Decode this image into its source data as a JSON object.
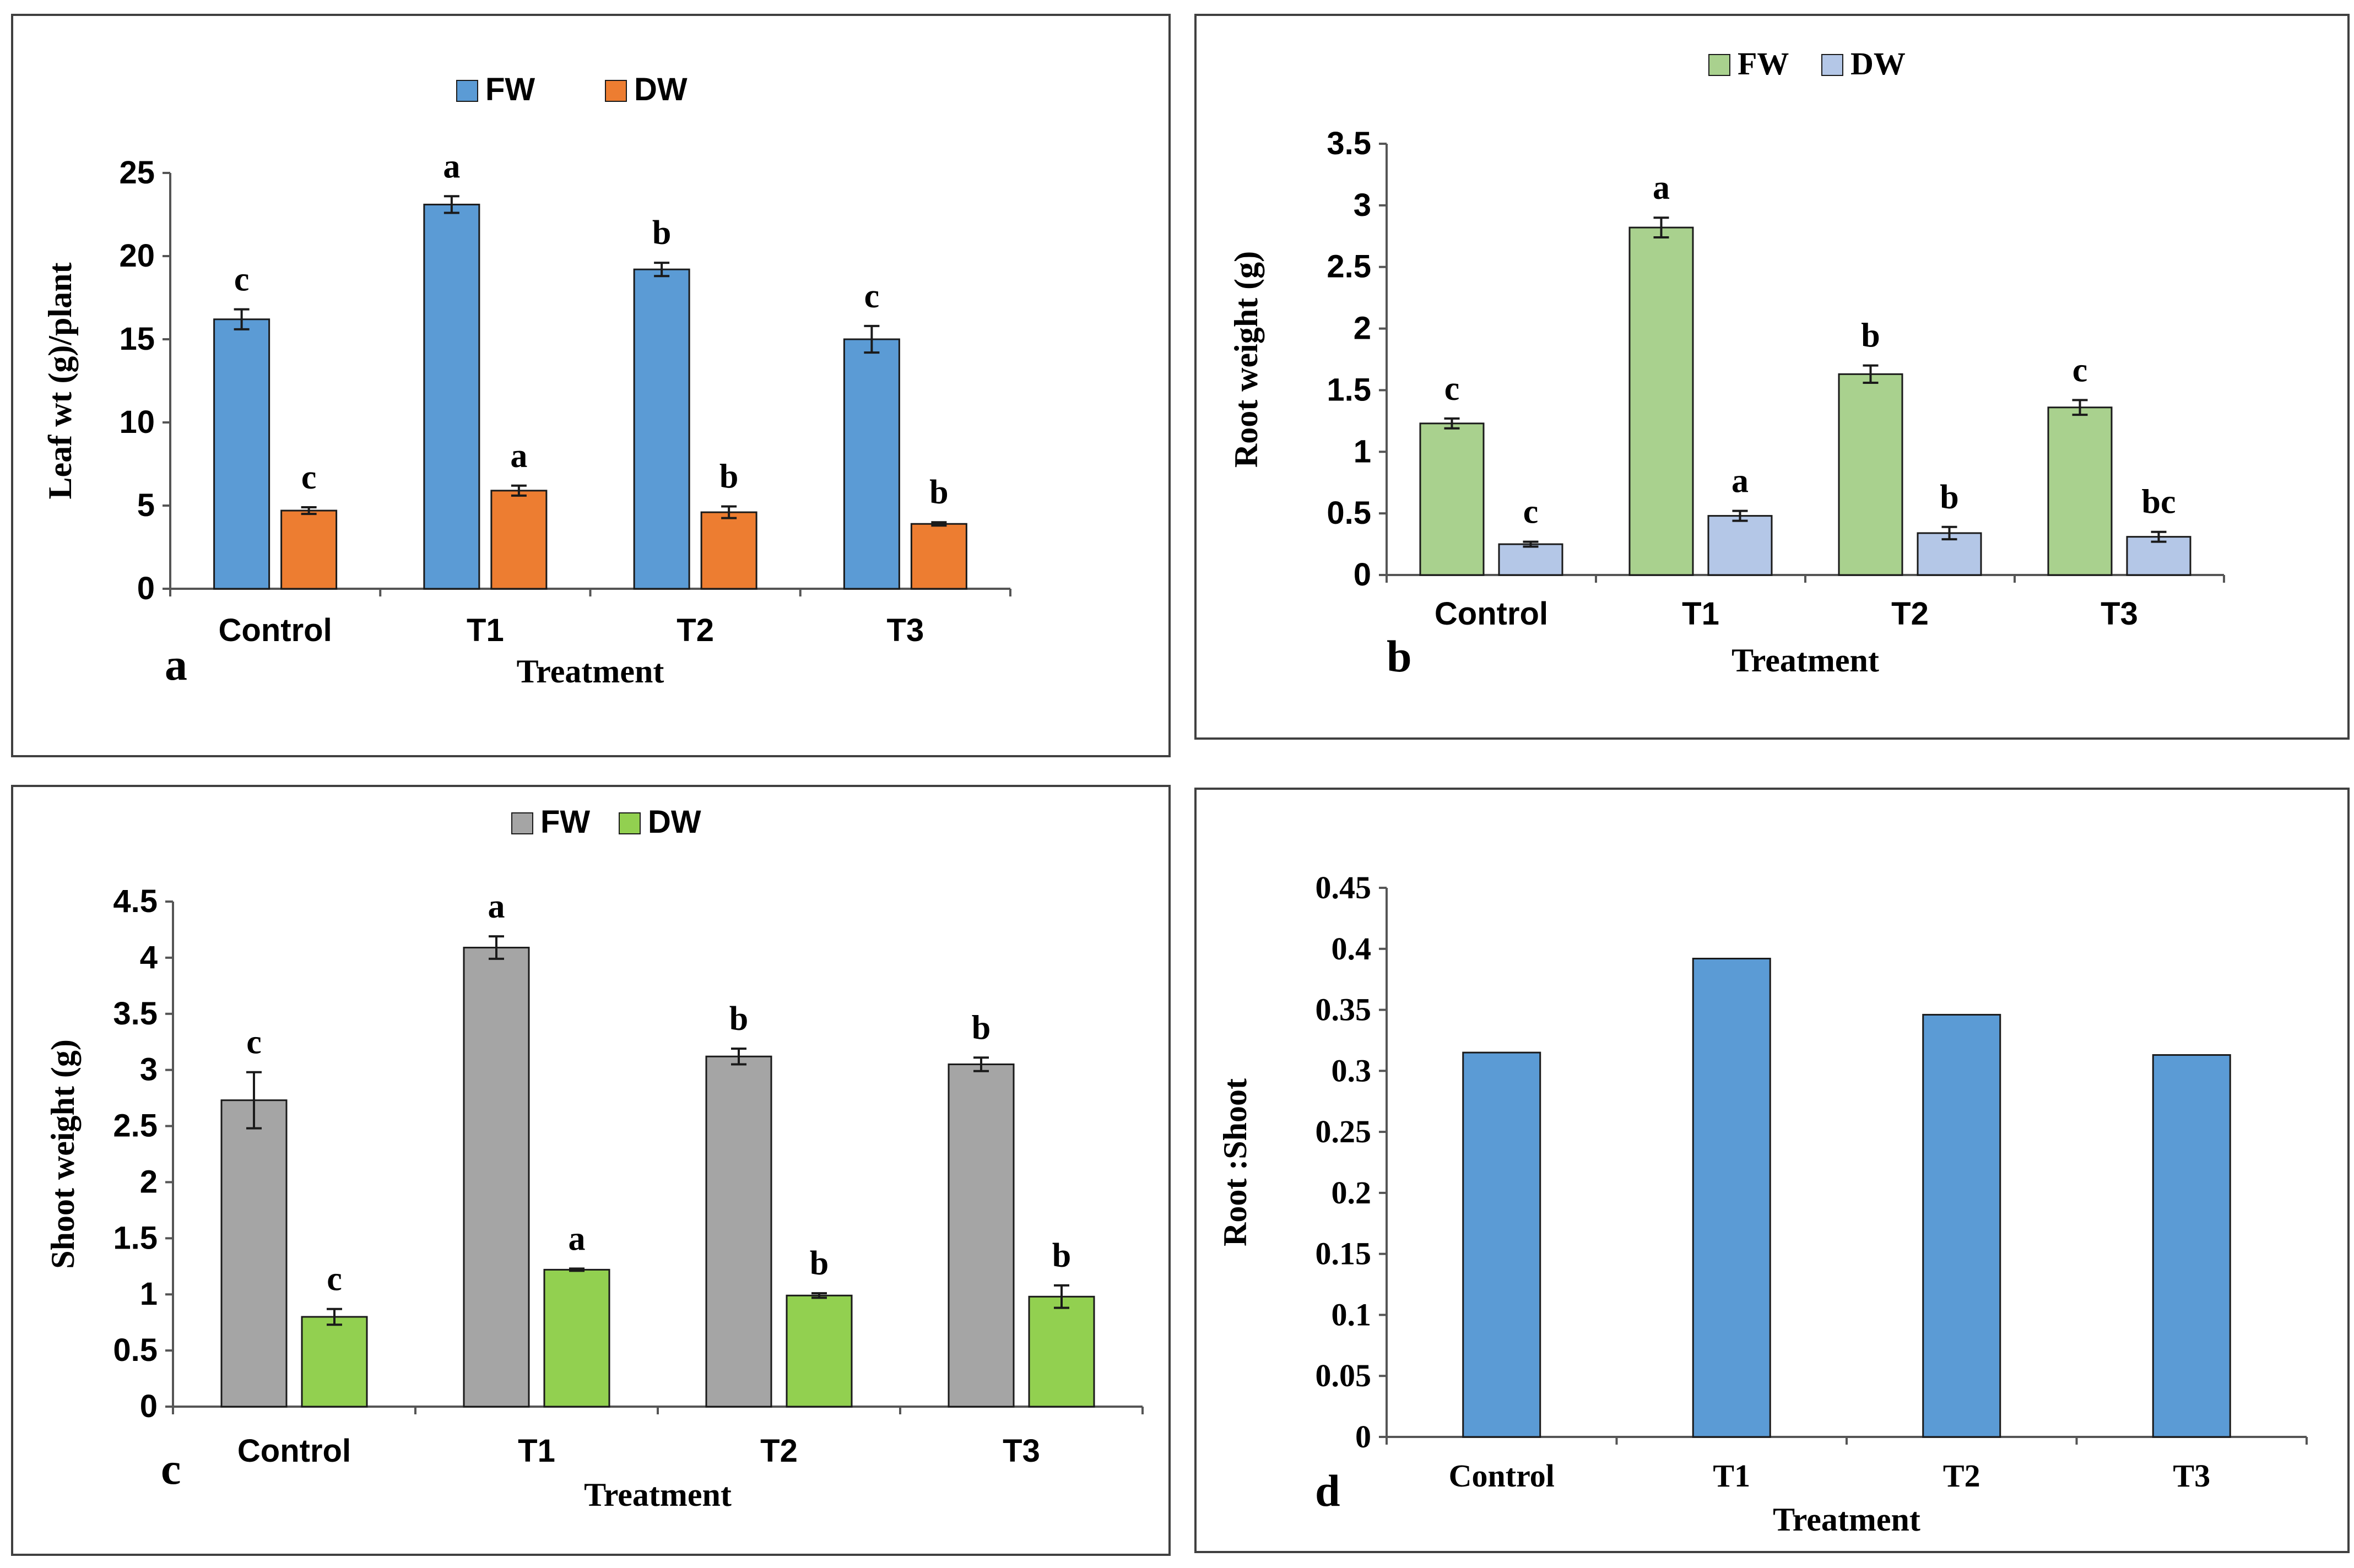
{
  "chart_data": [
    {
      "id": "a",
      "type": "bar",
      "panel_label": "a",
      "title": "",
      "xlabel": "Treatment",
      "ylabel": "Leaf wt (g)/plant",
      "categories": [
        "Control",
        "T1",
        "T2",
        "T3"
      ],
      "ylim": [
        0,
        25
      ],
      "yticks": [
        "0",
        "5",
        "10",
        "15",
        "20",
        "25"
      ],
      "ytick_values": [
        0,
        5,
        10,
        15,
        20,
        25
      ],
      "legend_position": "top-center",
      "grid": false,
      "series": [
        {
          "name": "FW",
          "color": "#5B9BD5",
          "values": [
            16.2,
            23.1,
            19.2,
            15.0
          ],
          "errors": [
            0.6,
            0.5,
            0.4,
            0.8
          ],
          "letters": [
            "c",
            "a",
            "b",
            "c"
          ]
        },
        {
          "name": "DW",
          "color": "#ED7D31",
          "values": [
            4.7,
            5.9,
            4.6,
            3.9
          ],
          "errors": [
            0.2,
            0.3,
            0.35,
            0.1
          ],
          "letters": [
            "c",
            "a",
            "b",
            "b"
          ]
        }
      ]
    },
    {
      "id": "b",
      "type": "bar",
      "panel_label": "b",
      "title": "",
      "xlabel": "Treatment",
      "ylabel": "Root weight  (g)",
      "categories": [
        "Control",
        "T1",
        "T2",
        "T3"
      ],
      "ylim": [
        0,
        3.5
      ],
      "yticks": [
        "0",
        "0.5",
        "1",
        "1.5",
        "2",
        "2.5",
        "3",
        "3.5"
      ],
      "ytick_values": [
        0,
        0.5,
        1,
        1.5,
        2,
        2.5,
        3,
        3.5
      ],
      "legend_position": "top-center",
      "grid": false,
      "series": [
        {
          "name": "FW",
          "color": "#A9D18E",
          "values": [
            1.23,
            2.82,
            1.63,
            1.36
          ],
          "errors": [
            0.04,
            0.08,
            0.07,
            0.06
          ],
          "letters": [
            "c",
            "a",
            "b",
            "c"
          ]
        },
        {
          "name": "DW",
          "color": "#B4C7E7",
          "values": [
            0.25,
            0.48,
            0.34,
            0.31
          ],
          "errors": [
            0.02,
            0.04,
            0.05,
            0.04
          ],
          "letters": [
            "c",
            "a",
            "b",
            "bc"
          ]
        }
      ]
    },
    {
      "id": "c",
      "type": "bar",
      "panel_label": "c",
      "title": "",
      "xlabel": "Treatment",
      "ylabel": "Shoot weight (g)",
      "categories": [
        "Control",
        "T1",
        "T2",
        "T3"
      ],
      "ylim": [
        0,
        4.5
      ],
      "yticks": [
        "0",
        "0.5",
        "1",
        "1.5",
        "2",
        "2.5",
        "3",
        "3.5",
        "4",
        "4.5"
      ],
      "ytick_values": [
        0,
        0.5,
        1,
        1.5,
        2,
        2.5,
        3,
        3.5,
        4,
        4.5
      ],
      "legend_position": "top-center",
      "grid": false,
      "series": [
        {
          "name": "FW",
          "color": "#A5A5A5",
          "values": [
            2.73,
            4.09,
            3.12,
            3.05
          ],
          "errors": [
            0.25,
            0.1,
            0.07,
            0.06
          ],
          "letters": [
            "c",
            "a",
            "b",
            "b"
          ]
        },
        {
          "name": "DW",
          "color": "#92D050",
          "values": [
            0.8,
            1.22,
            0.99,
            0.98
          ],
          "errors": [
            0.07,
            0.01,
            0.02,
            0.1
          ],
          "letters": [
            "c",
            "a",
            "b",
            "b"
          ]
        }
      ]
    },
    {
      "id": "d",
      "type": "bar",
      "panel_label": "d",
      "title": "",
      "xlabel": "Treatment",
      "ylabel": "Root :Shoot",
      "categories": [
        "Control",
        "T1",
        "T2",
        "T3"
      ],
      "ylim": [
        0,
        0.45
      ],
      "yticks": [
        "0",
        "0.05",
        "0.1",
        "0.15",
        "0.2",
        "0.25",
        "0.3",
        "0.35",
        "0.4",
        "0.45"
      ],
      "ytick_values": [
        0,
        0.05,
        0.1,
        0.15,
        0.2,
        0.25,
        0.3,
        0.35,
        0.4,
        0.45
      ],
      "legend_position": "none",
      "grid": false,
      "series": [
        {
          "name": "Root :Shoot",
          "color": "#5B9BD5",
          "values": [
            0.315,
            0.392,
            0.346,
            0.313
          ]
        }
      ]
    }
  ]
}
